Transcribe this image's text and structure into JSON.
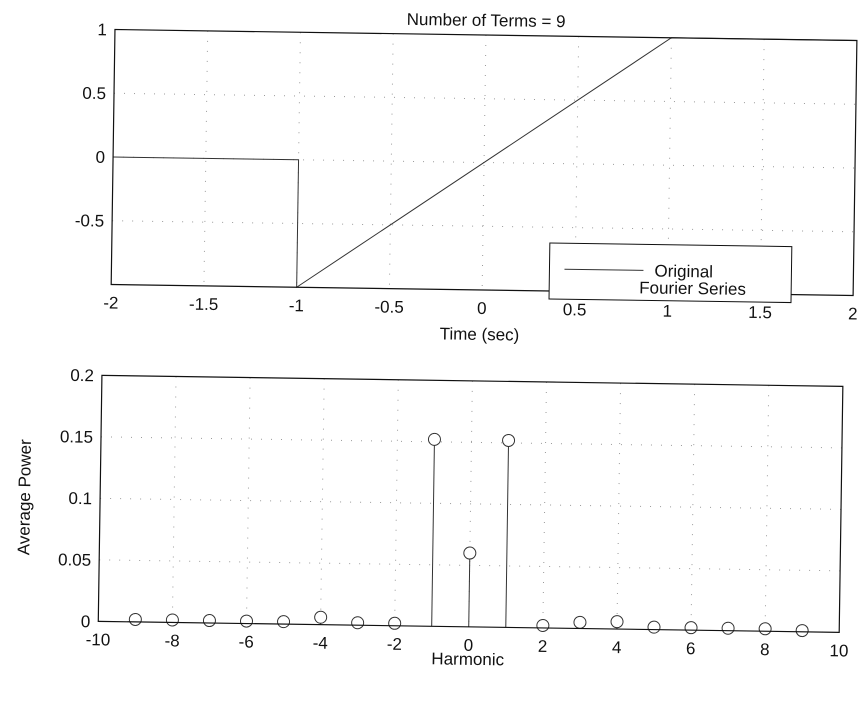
{
  "chart_data": [
    {
      "type": "line",
      "title": "Number of Terms = 9",
      "xlabel": "Time (sec)",
      "ylabel": "",
      "xlim": [
        -2,
        2
      ],
      "ylim": [
        -1,
        1
      ],
      "xticks": [
        "-2",
        "-1.5",
        "-1",
        "-0.5",
        "0",
        "0.5",
        "1",
        "1.5",
        "2"
      ],
      "yticks": [
        "-0.5",
        "0",
        "0.5",
        "1"
      ],
      "grid": true,
      "legend": "bottom-right",
      "series": [
        {
          "name": "Original",
          "x": [
            -2,
            -1,
            -1,
            1,
            1,
            2
          ],
          "y": [
            0,
            0,
            -1,
            1,
            1,
            1
          ]
        },
        {
          "name": "Fourier Series",
          "x": [],
          "y": []
        }
      ]
    },
    {
      "type": "stem",
      "title": "",
      "xlabel": "Harmonic",
      "ylabel": "Average Power",
      "xlim": [
        -10,
        10
      ],
      "ylim": [
        0,
        0.2
      ],
      "xticks": [
        "-10",
        "-8",
        "-6",
        "-4",
        "-2",
        "0",
        "2",
        "4",
        "6",
        "8",
        "10"
      ],
      "yticks": [
        "0",
        "0.05",
        "0.1",
        "0.15",
        "0.2"
      ],
      "grid": true,
      "x": [
        -9,
        -8,
        -7,
        -6,
        -5,
        -4,
        -3,
        -2,
        -1,
        0,
        1,
        2,
        3,
        4,
        5,
        6,
        7,
        8,
        9
      ],
      "values": [
        0.002,
        0.002,
        0.002,
        0.002,
        0.002,
        0.006,
        0.002,
        0.002,
        0.152,
        0.06,
        0.152,
        0.002,
        0.005,
        0.006,
        0.002,
        0.002,
        0.002,
        0.002,
        0.001
      ]
    }
  ]
}
